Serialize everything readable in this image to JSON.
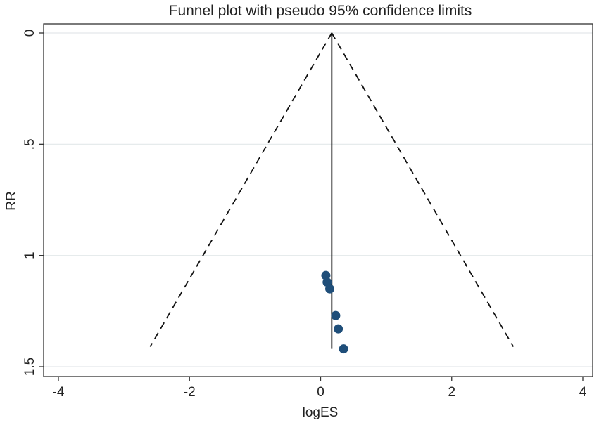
{
  "chart_data": {
    "type": "scatter",
    "title": "Funnel plot with pseudo 95% confidence limits",
    "xlabel": "logES",
    "ylabel": "RR",
    "xlim": [
      -4,
      4
    ],
    "ylim": [
      0,
      1.5
    ],
    "y_reversed": true,
    "x_ticks": [
      {
        "value": -4,
        "label": "-4"
      },
      {
        "value": -2,
        "label": "-2"
      },
      {
        "value": 0,
        "label": "0"
      },
      {
        "value": 2,
        "label": "2"
      },
      {
        "value": 4,
        "label": "4"
      }
    ],
    "y_ticks": [
      {
        "value": 0,
        "label": "0"
      },
      {
        "value": 0.5,
        "label": ".5"
      },
      {
        "value": 1,
        "label": "1"
      },
      {
        "value": 1.5,
        "label": "1.5"
      }
    ],
    "grid": "horizontal",
    "points": [
      {
        "x": 0.08,
        "y": 1.09
      },
      {
        "x": 0.1,
        "y": 1.12
      },
      {
        "x": 0.14,
        "y": 1.15
      },
      {
        "x": 0.23,
        "y": 1.27
      },
      {
        "x": 0.27,
        "y": 1.33
      },
      {
        "x": 0.35,
        "y": 1.42
      }
    ],
    "pooled_estimate": 0.17,
    "pooled_line_range": [
      0,
      1.42
    ],
    "confidence_limits": {
      "left": [
        {
          "x": 0.17,
          "y": 0
        },
        {
          "x": -2.6,
          "y": 1.41
        }
      ],
      "right": [
        {
          "x": 0.17,
          "y": 0
        },
        {
          "x": 2.94,
          "y": 1.41
        }
      ]
    },
    "colors": {
      "points": "#1f4e79",
      "lines": "#111111",
      "grid": "#e3e8ea",
      "frame": "#333333"
    }
  }
}
